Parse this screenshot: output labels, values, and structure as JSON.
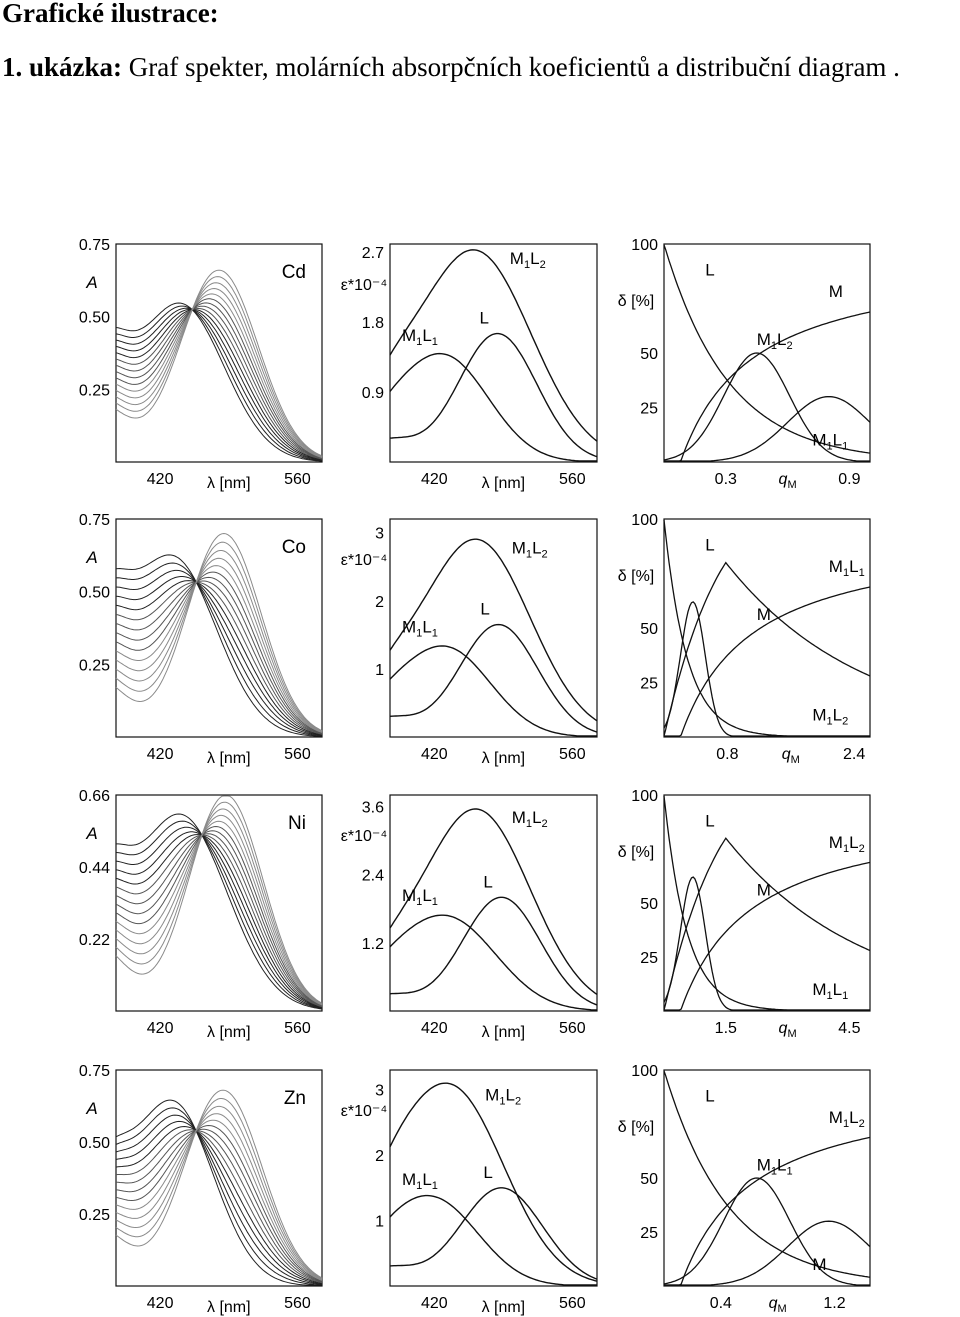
{
  "header": {
    "title": "Grafické ilustrace:",
    "example_num": "1. ukázka:",
    "example_text": "Graf spekter, molárních absorpčních koeficientů a distribuční diagram ."
  },
  "colors": {
    "line": "#111111",
    "grey": "#8a8a8a"
  },
  "chart_data": [
    {
      "type": "line",
      "name": "Cd-absorbance",
      "label": "Cd",
      "ylabel": "A",
      "xlabel": "λ [nm]",
      "xticks": [
        "420",
        "560"
      ],
      "yticks": [
        "0.25",
        "0.50",
        "0.75"
      ],
      "xlim": [
        375,
        585
      ],
      "ylim": [
        0.0,
        0.75
      ],
      "metal": {
        "peak": 440,
        "width": 45,
        "height": 0.545,
        "shoulder": 0.36
      },
      "ligand": {
        "peak": 480,
        "width": 40,
        "height": 0.66
      },
      "iso": [
        0.44,
        0.39
      ]
    },
    {
      "type": "line",
      "name": "Cd-epsilon",
      "ylabel": "ε*10⁻⁴",
      "xlabel": "λ [nm]",
      "xticks": [
        "420",
        "560"
      ],
      "yticks": [
        "0.9",
        "1.8",
        "2.7"
      ],
      "xlim": [
        375,
        585
      ],
      "ylim": [
        0,
        2.8
      ],
      "series": [
        {
          "name": "M1L2",
          "peak": 460,
          "height": 2.72,
          "width": 58
        },
        {
          "name": "L",
          "peak": 484,
          "height": 1.65,
          "width": 40
        },
        {
          "name": "M1L1",
          "peak": 430,
          "height": 1.35,
          "width": 45
        }
      ],
      "labels": {
        "M1L2": "M1L2",
        "L": "L",
        "M1L1": "M1L1"
      }
    },
    {
      "type": "line",
      "name": "Cd-distribution",
      "ylabel": "δ [%]",
      "xlabel": "qM",
      "xticks": [
        "0.3",
        "0.9"
      ],
      "yticks": [
        "25",
        "50",
        "100"
      ],
      "xlim": [
        0,
        1.0
      ],
      "ylim": [
        0,
        100
      ],
      "labels": {
        "L": "L",
        "M": "M",
        "M1L2": "M1L2",
        "M1L1": "M1L1"
      }
    },
    {
      "type": "line",
      "name": "Co-absorbance",
      "label": "Co",
      "ylabel": "A",
      "xlabel": "λ [nm]",
      "xticks": [
        "420",
        "560"
      ],
      "yticks": [
        "0.25",
        "0.50",
        "0.75"
      ],
      "xlim": [
        375,
        585
      ],
      "ylim": [
        0.0,
        0.75
      ],
      "metal": {
        "peak": 432,
        "width": 45,
        "height": 0.62,
        "shoulder": 0.4
      },
      "ligand": {
        "peak": 485,
        "width": 38,
        "height": 0.7
      },
      "iso": [
        0.42,
        0.44
      ]
    },
    {
      "type": "line",
      "name": "Co-epsilon",
      "ylabel": "ε*10⁻⁴",
      "xlabel": "λ [nm]",
      "xticks": [
        "420",
        "560"
      ],
      "yticks": [
        "1",
        "2",
        "3"
      ],
      "xlim": [
        375,
        585
      ],
      "ylim": [
        0,
        3.2
      ],
      "series": [
        {
          "name": "M1L2",
          "peak": 462,
          "height": 2.9,
          "width": 55
        },
        {
          "name": "L",
          "peak": 485,
          "height": 1.65,
          "width": 40
        },
        {
          "name": "M1L1",
          "peak": 432,
          "height": 1.3,
          "width": 45
        }
      ],
      "labels": {
        "M1L2": "M1L2",
        "L": "L",
        "M1L1": "M1L1"
      }
    },
    {
      "type": "line",
      "name": "Co-distribution",
      "ylabel": "δ [%]",
      "xlabel": "qM",
      "xticks": [
        "0.8",
        "2.4"
      ],
      "yticks": [
        "25",
        "50",
        "100"
      ],
      "xlim": [
        0,
        2.6
      ],
      "ylim": [
        0,
        100
      ],
      "labels": {
        "L": "L",
        "M1L1": "M1L1",
        "M": "M",
        "M1L2": "M1L2"
      }
    },
    {
      "type": "line",
      "name": "Ni-absorbance",
      "label": "Ni",
      "ylabel": "A",
      "xlabel": "λ [nm]",
      "xticks": [
        "420",
        "560"
      ],
      "yticks": [
        "0.22",
        "0.44",
        "0.66"
      ],
      "xlim": [
        375,
        585
      ],
      "ylim": [
        0.0,
        0.66
      ],
      "metal": {
        "peak": 440,
        "width": 48,
        "height": 0.6,
        "shoulder": 0.36
      },
      "ligand": {
        "peak": 487,
        "width": 38,
        "height": 0.66
      },
      "iso": [
        0.45,
        0.42
      ]
    },
    {
      "type": "line",
      "name": "Ni-epsilon",
      "ylabel": "ε*10⁻⁴",
      "xlabel": "λ [nm]",
      "xticks": [
        "420",
        "560"
      ],
      "yticks": [
        "1.2",
        "2.4",
        "3.6"
      ],
      "xlim": [
        375,
        585
      ],
      "ylim": [
        0,
        3.8
      ],
      "series": [
        {
          "name": "M1L2",
          "peak": 462,
          "height": 3.55,
          "width": 55
        },
        {
          "name": "L",
          "peak": 488,
          "height": 2.0,
          "width": 40
        },
        {
          "name": "M1L1",
          "peak": 432,
          "height": 1.65,
          "width": 50
        }
      ],
      "labels": {
        "M1L2": "M1L2",
        "L": "L",
        "M1L1": "M1L1"
      }
    },
    {
      "type": "line",
      "name": "Ni-distribution",
      "ylabel": "δ [%]",
      "xlabel": "qM",
      "xticks": [
        "1.5",
        "4.5"
      ],
      "yticks": [
        "25",
        "50",
        "100"
      ],
      "xlim": [
        0,
        5.0
      ],
      "ylim": [
        0,
        100
      ],
      "labels": {
        "L": "L",
        "M1L2": "M1L2",
        "M": "M",
        "M1L1": "M1L1"
      }
    },
    {
      "type": "line",
      "name": "Zn-absorbance",
      "label": "Zn",
      "ylabel": "A",
      "xlabel": "λ [nm]",
      "xticks": [
        "420",
        "560"
      ],
      "yticks": [
        "0.25",
        "0.50",
        "0.75"
      ],
      "xlim": [
        375,
        585
      ],
      "ylim": [
        0.0,
        0.75
      ],
      "metal": {
        "peak": 432,
        "width": 42,
        "height": 0.64,
        "shoulder": 0.35
      },
      "ligand": {
        "peak": 484,
        "width": 40,
        "height": 0.68
      },
      "iso": [
        0.44,
        0.4
      ]
    },
    {
      "type": "line",
      "name": "Zn-epsilon",
      "ylabel": "ε*10⁻⁴",
      "xlabel": "λ [nm]",
      "xticks": [
        "420",
        "560"
      ],
      "yticks": [
        "1",
        "2",
        "3"
      ],
      "xlim": [
        375,
        585
      ],
      "ylim": [
        0,
        3.3
      ],
      "series": [
        {
          "name": "M1L2",
          "peak": 435,
          "height": 3.05,
          "width": 55
        },
        {
          "name": "L",
          "peak": 488,
          "height": 1.5,
          "width": 42
        },
        {
          "name": "M1L1",
          "peak": 420,
          "height": 1.3,
          "width": 45
        }
      ],
      "labels": {
        "M1L2": "M1L2",
        "L": "L",
        "M1L1": "M1L1"
      }
    },
    {
      "type": "line",
      "name": "Zn-distribution",
      "ylabel": "δ [%]",
      "xlabel": "qM",
      "xticks": [
        "0.4",
        "1.2"
      ],
      "yticks": [
        "25",
        "50",
        "100"
      ],
      "xlim": [
        0,
        1.45
      ],
      "ylim": [
        0,
        100
      ],
      "labels": {
        "L": "L",
        "M1L2": "M1L2",
        "M1L1": "M1L1",
        "M": "M"
      }
    }
  ]
}
